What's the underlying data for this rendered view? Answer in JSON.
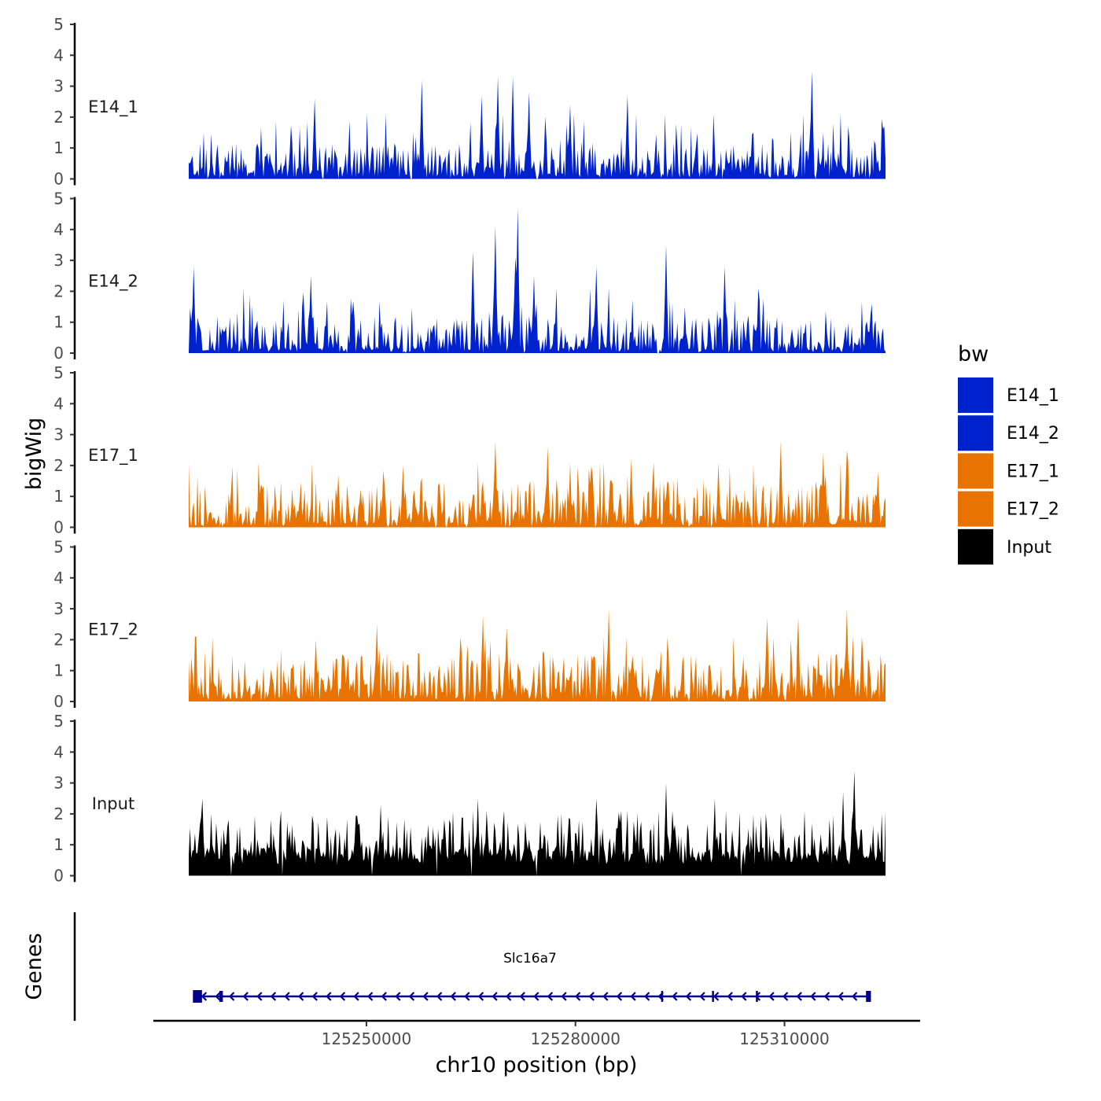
{
  "chart_data": {
    "type": "area",
    "region": {
      "chrom": "chr10",
      "start": 125224500,
      "end": 125324500
    },
    "ylabel": "bigWig",
    "xlabel": "chr10 position (bp)",
    "ylim": [
      0,
      5
    ],
    "y_ticks": [
      "0",
      "1",
      "2",
      "3",
      "4",
      "5"
    ],
    "x_ticks": [
      {
        "value": 125250000,
        "label": "125250000"
      },
      {
        "value": 125280000,
        "label": "125280000"
      },
      {
        "value": 125310000,
        "label": "125310000"
      }
    ],
    "legend": {
      "title": "bw",
      "position": "right",
      "entries": [
        {
          "label": "E14_1",
          "color": "#0022CC"
        },
        {
          "label": "E14_2",
          "color": "#0022CC"
        },
        {
          "label": "E17_1",
          "color": "#E87300"
        },
        {
          "label": "E17_2",
          "color": "#E87300"
        },
        {
          "label": "Input",
          "color": "#000000"
        }
      ]
    },
    "series": [
      {
        "name": "E14_1",
        "color": "#0022CC",
        "peaks": [
          {
            "x": 125242500,
            "y": 2.6
          },
          {
            "x": 125257900,
            "y": 3.2
          },
          {
            "x": 125266500,
            "y": 2.7
          },
          {
            "x": 125268800,
            "y": 3.3
          },
          {
            "x": 125271000,
            "y": 3.3
          },
          {
            "x": 125273300,
            "y": 2.8
          },
          {
            "x": 125279200,
            "y": 2.4
          },
          {
            "x": 125287500,
            "y": 2.7
          },
          {
            "x": 125314000,
            "y": 3.5
          },
          {
            "x": 125323000,
            "y": 1.1
          }
        ]
      },
      {
        "name": "E14_2",
        "color": "#0022CC",
        "peaks": [
          {
            "x": 125225300,
            "y": 2.8
          },
          {
            "x": 125242000,
            "y": 2.5
          },
          {
            "x": 125265300,
            "y": 3.3
          },
          {
            "x": 125268500,
            "y": 4.1
          },
          {
            "x": 125271300,
            "y": 3.1
          },
          {
            "x": 125271800,
            "y": 4.7
          },
          {
            "x": 125274000,
            "y": 2.5
          },
          {
            "x": 125283000,
            "y": 2.8
          },
          {
            "x": 125293000,
            "y": 3.5
          },
          {
            "x": 125301500,
            "y": 2.8
          }
        ]
      },
      {
        "name": "E17_1",
        "color": "#E87300",
        "peaks": [
          {
            "x": 125246000,
            "y": 1.7
          },
          {
            "x": 125255300,
            "y": 2.0
          },
          {
            "x": 125268500,
            "y": 2.8
          },
          {
            "x": 125276000,
            "y": 2.6
          },
          {
            "x": 125288000,
            "y": 2.2
          },
          {
            "x": 125309500,
            "y": 2.8
          },
          {
            "x": 125315500,
            "y": 2.4
          },
          {
            "x": 125319000,
            "y": 2.5
          },
          {
            "x": 125323500,
            "y": 1.8
          }
        ]
      },
      {
        "name": "E17_2",
        "color": "#E87300",
        "peaks": [
          {
            "x": 125242800,
            "y": 2.0
          },
          {
            "x": 125251500,
            "y": 2.5
          },
          {
            "x": 125263500,
            "y": 2.1
          },
          {
            "x": 125266800,
            "y": 2.8
          },
          {
            "x": 125270200,
            "y": 2.4
          },
          {
            "x": 125284800,
            "y": 3.0
          },
          {
            "x": 125307500,
            "y": 2.7
          },
          {
            "x": 125312000,
            "y": 2.7
          },
          {
            "x": 125319000,
            "y": 3.0
          }
        ]
      },
      {
        "name": "Input",
        "color": "#000000",
        "peaks": [
          {
            "x": 125226400,
            "y": 2.5
          },
          {
            "x": 125252000,
            "y": 2.3
          },
          {
            "x": 125266000,
            "y": 2.5
          },
          {
            "x": 125283000,
            "y": 2.5
          },
          {
            "x": 125293000,
            "y": 3.0
          },
          {
            "x": 125300000,
            "y": 2.5
          },
          {
            "x": 125318500,
            "y": 2.7
          },
          {
            "x": 125320100,
            "y": 3.4
          }
        ]
      }
    ],
    "genes_track": {
      "label": "Genes",
      "genes": [
        {
          "name": "Slc16a7",
          "strand": "-",
          "color": "#00008B",
          "start": 125225100,
          "end": 125322400,
          "exons": [
            {
              "start": 125225100,
              "end": 125226400
            },
            {
              "start": 125228900,
              "end": 125229400
            },
            {
              "start": 125292300,
              "end": 125292500
            },
            {
              "start": 125299600,
              "end": 125299800
            },
            {
              "start": 125305900,
              "end": 125306100
            },
            {
              "start": 125321700,
              "end": 125322400
            }
          ]
        }
      ]
    }
  }
}
